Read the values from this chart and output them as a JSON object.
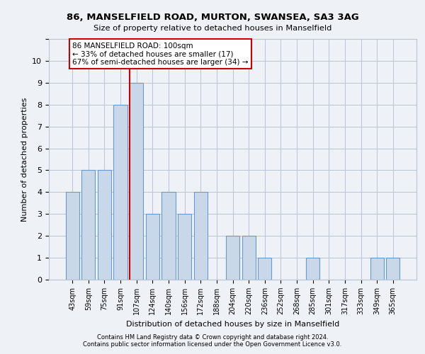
{
  "title1": "86, MANSELFIELD ROAD, MURTON, SWANSEA, SA3 3AG",
  "title2": "Size of property relative to detached houses in Manselfield",
  "xlabel": "Distribution of detached houses by size in Manselfield",
  "ylabel": "Number of detached properties",
  "categories": [
    "43sqm",
    "59sqm",
    "75sqm",
    "91sqm",
    "107sqm",
    "124sqm",
    "140sqm",
    "156sqm",
    "172sqm",
    "188sqm",
    "204sqm",
    "220sqm",
    "236sqm",
    "252sqm",
    "268sqm",
    "285sqm",
    "301sqm",
    "317sqm",
    "333sqm",
    "349sqm",
    "365sqm"
  ],
  "values": [
    4,
    5,
    5,
    8,
    9,
    3,
    4,
    3,
    4,
    0,
    2,
    2,
    1,
    0,
    0,
    1,
    0,
    0,
    0,
    1,
    1
  ],
  "bar_color": "#c8d8e8",
  "bar_edge_color": "#6699cc",
  "vline_color": "#cc0000",
  "annotation_text": "86 MANSELFIELD ROAD: 100sqm\n← 33% of detached houses are smaller (17)\n67% of semi-detached houses are larger (34) →",
  "annotation_box_color": "#ffffff",
  "annotation_box_edge": "#cc0000",
  "ylim": [
    0,
    11
  ],
  "yticks": [
    0,
    1,
    2,
    3,
    4,
    5,
    6,
    7,
    8,
    9,
    10,
    11
  ],
  "footer1": "Contains HM Land Registry data © Crown copyright and database right 2024.",
  "footer2": "Contains public sector information licensed under the Open Government Licence v3.0.",
  "background_color": "#eef2f7",
  "plot_bg_color": "#eef2f7"
}
